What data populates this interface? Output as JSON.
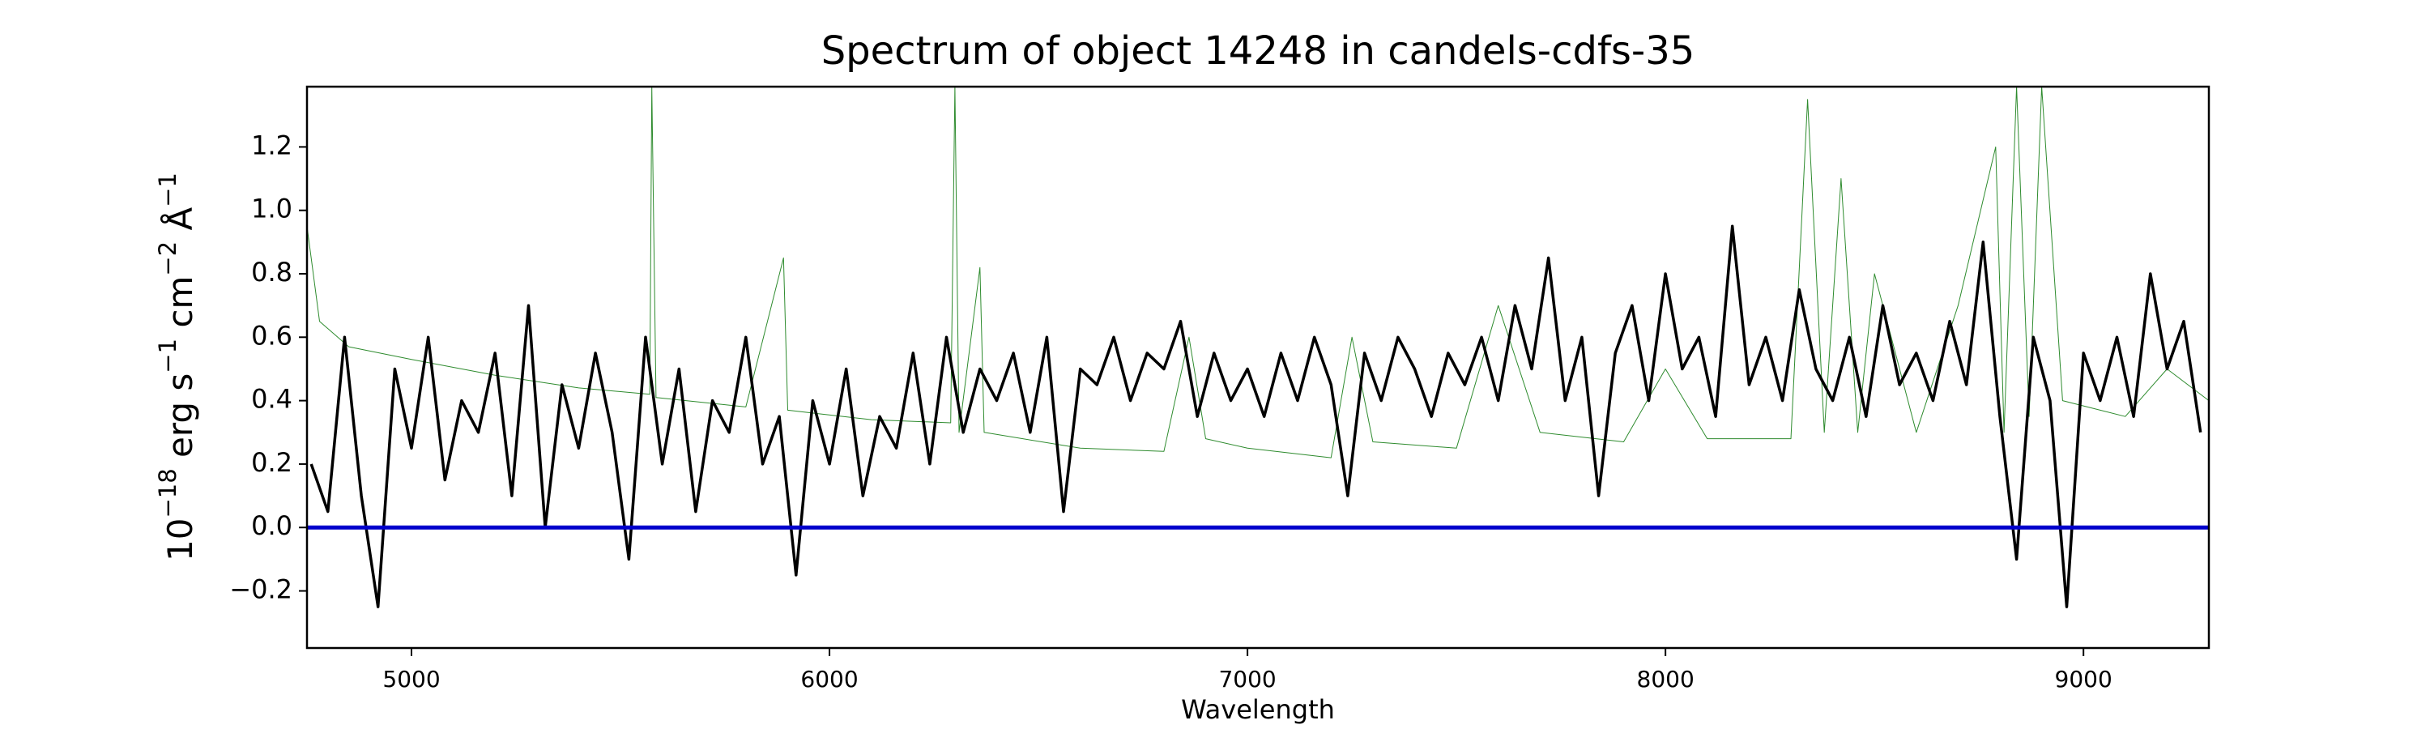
{
  "chart_data": {
    "type": "line",
    "title": "Spectrum of object 14248 in candels-cdfs-35",
    "x_label": "Wavelength",
    "y_label": [
      "10",
      "−18",
      " erg s",
      "−1",
      " cm",
      "−2",
      " Å",
      "−1"
    ],
    "xlim": [
      4750,
      9300
    ],
    "xticks": [
      5000,
      6000,
      7000,
      8000,
      9000
    ],
    "ylim": [
      -0.38,
      1.39
    ],
    "yticks": [
      {
        "value": -0.2,
        "label": "−0.2"
      },
      {
        "value": 0,
        "label": "0.0"
      },
      0.2,
      0.4,
      0.6,
      0.8,
      {
        "value": 1,
        "label": "1.0"
      },
      1.2
    ],
    "series": [
      {
        "color": "#2e8b2e",
        "width": 1,
        "x": [
          4750,
          4780,
          4850,
          5000,
          5200,
          5400,
          5570,
          5575,
          5585,
          5800,
          5890,
          5900,
          6100,
          6290,
          6300,
          6310,
          6360,
          6370,
          6600,
          6800,
          6860,
          6900,
          7000,
          7200,
          7250,
          7300,
          7500,
          7600,
          7700,
          7900,
          8000,
          8100,
          8300,
          8340,
          8380,
          8420,
          8460,
          8500,
          8600,
          8700,
          8790,
          8810,
          8840,
          8870,
          8900,
          8950,
          9100,
          9200,
          9300
        ],
        "values": [
          0.95,
          0.65,
          0.57,
          0.53,
          0.48,
          0.44,
          0.42,
          1.39,
          0.41,
          0.38,
          0.85,
          0.37,
          0.34,
          0.33,
          1.39,
          0.3,
          0.82,
          0.3,
          0.25,
          0.24,
          0.6,
          0.28,
          0.25,
          0.22,
          0.6,
          0.27,
          0.25,
          0.7,
          0.3,
          0.27,
          0.5,
          0.28,
          0.28,
          1.35,
          0.3,
          1.1,
          0.3,
          0.8,
          0.3,
          0.7,
          1.2,
          0.3,
          1.39,
          0.35,
          1.39,
          0.4,
          0.35,
          0.5,
          0.4
        ]
      },
      {
        "color": "#000000",
        "width": 3.5,
        "x": [
          4760,
          4800,
          4840,
          4880,
          4920,
          4960,
          5000,
          5040,
          5080,
          5120,
          5160,
          5200,
          5240,
          5280,
          5320,
          5360,
          5400,
          5440,
          5480,
          5520,
          5560,
          5600,
          5640,
          5680,
          5720,
          5760,
          5800,
          5840,
          5880,
          5920,
          5960,
          6000,
          6040,
          6080,
          6120,
          6160,
          6200,
          6240,
          6280,
          6320,
          6360,
          6400,
          6440,
          6480,
          6520,
          6560,
          6600,
          6640,
          6680,
          6720,
          6760,
          6800,
          6840,
          6880,
          6920,
          6960,
          7000,
          7040,
          7080,
          7120,
          7160,
          7200,
          7240,
          7280,
          7320,
          7360,
          7400,
          7440,
          7480,
          7520,
          7560,
          7600,
          7640,
          7680,
          7720,
          7760,
          7800,
          7840,
          7880,
          7920,
          7960,
          8000,
          8040,
          8080,
          8120,
          8160,
          8200,
          8240,
          8280,
          8320,
          8360,
          8400,
          8440,
          8480,
          8520,
          8560,
          8600,
          8640,
          8680,
          8720,
          8760,
          8800,
          8840,
          8880,
          8920,
          8960,
          9000,
          9040,
          9080,
          9120,
          9160,
          9200,
          9240,
          9280
        ],
        "values": [
          0.2,
          0.05,
          0.6,
          0.1,
          -0.25,
          0.5,
          0.25,
          0.6,
          0.15,
          0.4,
          0.3,
          0.55,
          0.1,
          0.7,
          0.0,
          0.45,
          0.25,
          0.55,
          0.3,
          -0.1,
          0.6,
          0.2,
          0.5,
          0.05,
          0.4,
          0.3,
          0.6,
          0.2,
          0.35,
          -0.15,
          0.4,
          0.2,
          0.5,
          0.1,
          0.35,
          0.25,
          0.55,
          0.2,
          0.6,
          0.3,
          0.5,
          0.4,
          0.55,
          0.3,
          0.6,
          0.05,
          0.5,
          0.45,
          0.6,
          0.4,
          0.55,
          0.5,
          0.65,
          0.35,
          0.55,
          0.4,
          0.5,
          0.35,
          0.55,
          0.4,
          0.6,
          0.45,
          0.1,
          0.55,
          0.4,
          0.6,
          0.5,
          0.35,
          0.55,
          0.45,
          0.6,
          0.4,
          0.7,
          0.5,
          0.85,
          0.4,
          0.6,
          0.1,
          0.55,
          0.7,
          0.4,
          0.8,
          0.5,
          0.6,
          0.35,
          0.95,
          0.45,
          0.6,
          0.4,
          0.75,
          0.5,
          0.4,
          0.6,
          0.35,
          0.7,
          0.45,
          0.55,
          0.4,
          0.65,
          0.45,
          0.9,
          0.35,
          -0.1,
          0.6,
          0.4,
          -0.25,
          0.55,
          0.4,
          0.6,
          0.35,
          0.8,
          0.5,
          0.65,
          0.3
        ]
      },
      {
        "color": "#0000cc",
        "width": 5,
        "x": [
          4750,
          9300
        ],
        "values": [
          0,
          0
        ]
      }
    ]
  }
}
